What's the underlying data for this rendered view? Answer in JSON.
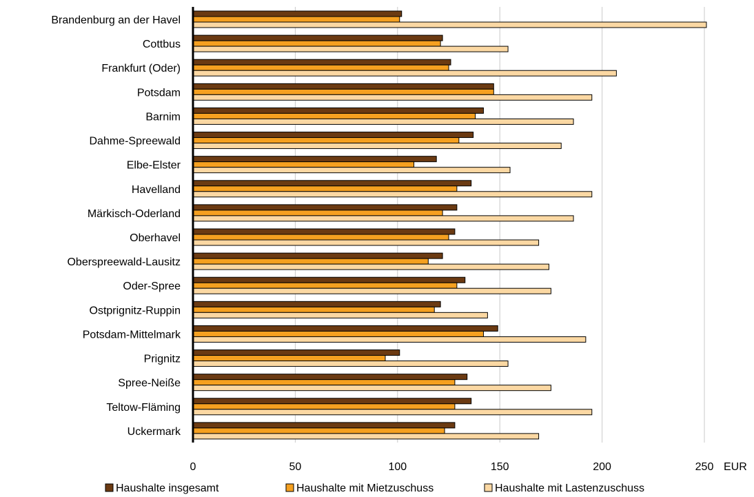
{
  "chart_data": {
    "type": "bar",
    "orientation": "horizontal",
    "categories": [
      "Brandenburg an der Havel",
      "Cottbus",
      "Frankfurt (Oder)",
      "Potsdam",
      "Barnim",
      "Dahme-Spreewald",
      "Elbe-Elster",
      "Havelland",
      "Märkisch-Oderland",
      "Oberhavel",
      "Oberspreewald-Lausitz",
      "Oder-Spree",
      "Ostprignitz-Ruppin",
      "Potsdam-Mittelmark",
      "Prignitz",
      "Spree-Neiße",
      "Teltow-Fläming",
      "Uckermark"
    ],
    "series": [
      {
        "name": "Haushalte insgesamt",
        "color": "#6b3a12",
        "values": [
          102,
          122,
          126,
          147,
          142,
          137,
          119,
          136,
          129,
          128,
          122,
          133,
          121,
          149,
          101,
          134,
          136,
          128
        ]
      },
      {
        "name": "Haushalte mit Mietzuschuss",
        "color": "#f5a020",
        "values": [
          101,
          121,
          125,
          147,
          138,
          130,
          108,
          129,
          122,
          125,
          115,
          129,
          118,
          142,
          94,
          128,
          128,
          123
        ]
      },
      {
        "name": "Haushalte mit Lastenzuschuss",
        "color": "#fbd8a3",
        "values": [
          251,
          154,
          207,
          195,
          186,
          180,
          155,
          195,
          186,
          169,
          174,
          175,
          144,
          192,
          154,
          175,
          195,
          169
        ]
      }
    ],
    "xlim": [
      0,
      250
    ],
    "x_ticks": [
      0,
      50,
      100,
      150,
      200,
      250
    ],
    "x_unit_label": "EUR",
    "grid": true,
    "legend_position": "bottom"
  }
}
